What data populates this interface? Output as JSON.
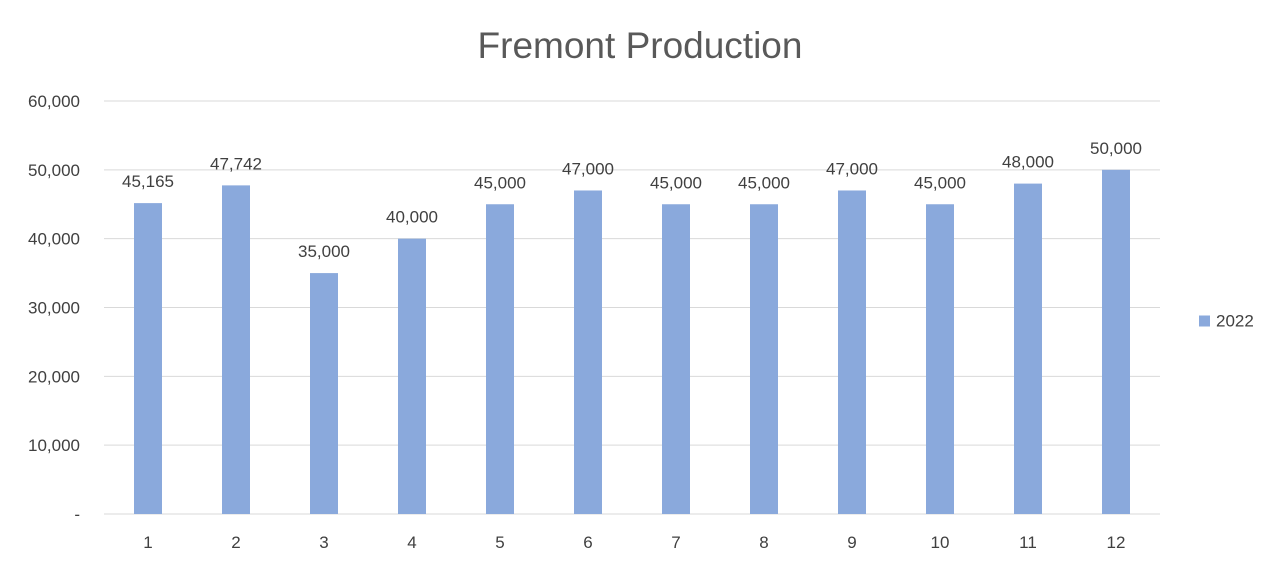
{
  "chart_data": {
    "type": "bar",
    "title": "Fremont Production",
    "xlabel": "",
    "ylabel": "",
    "categories": [
      "1",
      "2",
      "3",
      "4",
      "5",
      "6",
      "7",
      "8",
      "9",
      "10",
      "11",
      "12"
    ],
    "series": [
      {
        "name": "2022",
        "values": [
          45165,
          47742,
          35000,
          40000,
          45000,
          47000,
          45000,
          45000,
          47000,
          45000,
          48000,
          50000
        ],
        "value_labels": [
          "45,165",
          "47,742",
          "35,000",
          "40,000",
          "45,000",
          "47,000",
          "45,000",
          "45,000",
          "47,000",
          "45,000",
          "48,000",
          "50,000"
        ],
        "color": "#8aa9dc"
      }
    ],
    "ylim": [
      0,
      60000
    ],
    "yticks": [
      0,
      10000,
      20000,
      30000,
      40000,
      50000,
      60000
    ],
    "ytick_labels": [
      "-",
      "10,000",
      "20,000",
      "30,000",
      "40,000",
      "50,000",
      "60,000"
    ],
    "grid": true,
    "legend_position": "right",
    "gridline_color": "#d9d9d9",
    "text_color": "#404040",
    "title_color": "#595959"
  }
}
